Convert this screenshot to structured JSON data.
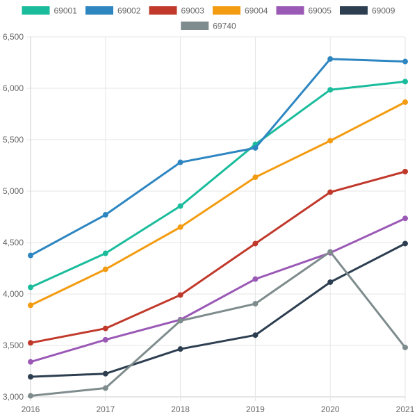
{
  "chart_data": {
    "type": "line",
    "title": "",
    "xlabel": "",
    "ylabel": "",
    "x": [
      "2016",
      "2017",
      "2018",
      "2019",
      "2020",
      "2021"
    ],
    "ylim": [
      3000,
      6500
    ],
    "yticks": [
      3000,
      3500,
      4000,
      4500,
      5000,
      5500,
      6000,
      6500
    ],
    "ytick_labels": [
      "3,000",
      "3,500",
      "4,000",
      "4,500",
      "5,000",
      "5,500",
      "6,000",
      "6,500"
    ],
    "grid": true,
    "legend_position": "top",
    "series": [
      {
        "name": "69001",
        "color": "#1abc9c",
        "values": [
          4065,
          4395,
          4855,
          5455,
          5985,
          6065
        ]
      },
      {
        "name": "69002",
        "color": "#2e86c1",
        "values": [
          4375,
          4770,
          5280,
          5420,
          6285,
          6260
        ]
      },
      {
        "name": "69003",
        "color": "#c0392b",
        "values": [
          3525,
          3665,
          3990,
          4490,
          4990,
          5190
        ]
      },
      {
        "name": "69004",
        "color": "#f39c12",
        "values": [
          3890,
          4240,
          4650,
          5135,
          5490,
          5865
        ]
      },
      {
        "name": "69005",
        "color": "#9b59b6",
        "values": [
          3340,
          3555,
          3750,
          4145,
          4400,
          4735
        ]
      },
      {
        "name": "69009",
        "color": "#2c3e50",
        "values": [
          3195,
          3225,
          3465,
          3600,
          4115,
          4490
        ]
      },
      {
        "name": "69740",
        "color": "#7f8c8d",
        "values": [
          3010,
          3085,
          3740,
          3905,
          4410,
          3480
        ]
      }
    ]
  }
}
